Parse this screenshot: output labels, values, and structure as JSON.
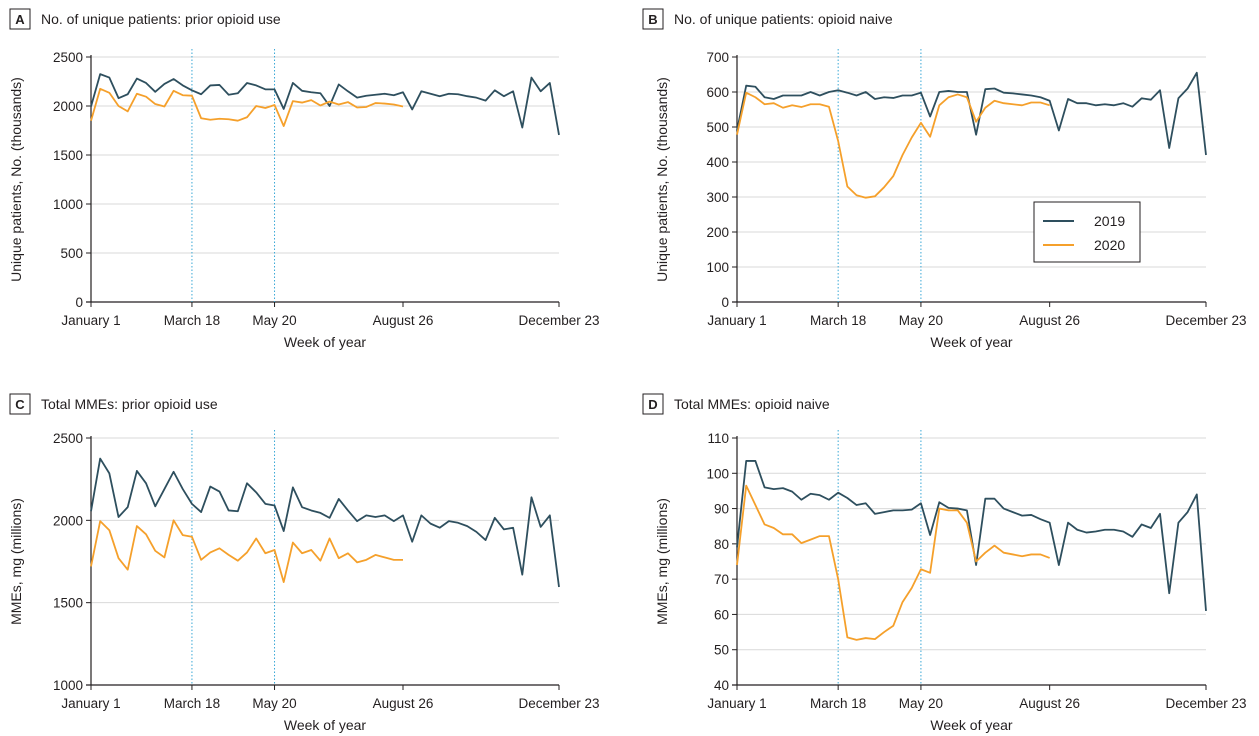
{
  "colors": {
    "series_2019": "#2e4f5e",
    "series_2020": "#f5a02b",
    "axis": "#231f20",
    "grid": "#d9d9d9",
    "marker": "#39a8d6"
  },
  "chart_data": [
    {
      "panel": "A",
      "type": "line",
      "title": "No. of unique patients: prior opioid use",
      "xlabel": "Week of year",
      "ylabel": "Unique patients, No. (thousands)",
      "xlim": [
        1,
        52
      ],
      "ylim": [
        0,
        2500
      ],
      "yticks": [
        0,
        500,
        1000,
        1500,
        2000,
        2500
      ],
      "xticks": [
        {
          "x": 1,
          "label": "January 1"
        },
        {
          "x": 12,
          "label": "March 18"
        },
        {
          "x": 21,
          "label": "May 20"
        },
        {
          "x": 35,
          "label": "August 26"
        },
        {
          "x": 52,
          "label": "December 23"
        }
      ],
      "vlines": [
        12,
        21
      ],
      "grid": true,
      "series": [
        {
          "name": "2019",
          "values": [
            1995,
            2325,
            2290,
            2080,
            2120,
            2280,
            2235,
            2145,
            2225,
            2275,
            2210,
            2160,
            2120,
            2210,
            2215,
            2115,
            2130,
            2235,
            2210,
            2170,
            2170,
            1970,
            2235,
            2155,
            2140,
            2130,
            2000,
            2220,
            2150,
            2085,
            2105,
            2115,
            2125,
            2110,
            2140,
            1965,
            2150,
            2125,
            2100,
            2125,
            2120,
            2100,
            2085,
            2055,
            2160,
            2100,
            2150,
            1780,
            2290,
            2150,
            2235,
            1705
          ]
        },
        {
          "name": "2020",
          "values": [
            1850,
            2175,
            2135,
            2000,
            1945,
            2125,
            2095,
            2020,
            1995,
            2155,
            2110,
            2105,
            1875,
            1860,
            1870,
            1865,
            1850,
            1885,
            2000,
            1980,
            2010,
            1795,
            2050,
            2035,
            2060,
            2005,
            2045,
            2015,
            2040,
            1985,
            1990,
            2030,
            2025,
            2015,
            1995
          ]
        }
      ]
    },
    {
      "panel": "B",
      "type": "line",
      "title": "No. of unique patients: opioid naive",
      "xlabel": "Week of year",
      "ylabel": "Unique patients, No. (thousands)",
      "xlim": [
        1,
        52
      ],
      "ylim": [
        0,
        700
      ],
      "yticks": [
        0,
        100,
        200,
        300,
        400,
        500,
        600,
        700
      ],
      "xticks": [
        {
          "x": 1,
          "label": "January 1"
        },
        {
          "x": 12,
          "label": "March 18"
        },
        {
          "x": 21,
          "label": "May 20"
        },
        {
          "x": 35,
          "label": "August 26"
        },
        {
          "x": 52,
          "label": "December 23"
        }
      ],
      "vlines": [
        12,
        21
      ],
      "grid": true,
      "legend": {
        "position": "right",
        "entries": [
          "2019",
          "2020"
        ]
      },
      "series": [
        {
          "name": "2019",
          "values": [
            490,
            618,
            615,
            585,
            580,
            590,
            590,
            590,
            600,
            590,
            600,
            605,
            598,
            590,
            600,
            580,
            585,
            583,
            590,
            590,
            598,
            530,
            600,
            603,
            600,
            600,
            478,
            608,
            610,
            598,
            596,
            593,
            590,
            585,
            575,
            490,
            580,
            568,
            568,
            562,
            565,
            562,
            568,
            558,
            582,
            578,
            605,
            440,
            582,
            610,
            655,
            420
          ]
        },
        {
          "name": "2020",
          "values": [
            478,
            598,
            585,
            565,
            568,
            555,
            562,
            557,
            565,
            565,
            558,
            460,
            330,
            305,
            298,
            302,
            328,
            360,
            420,
            470,
            512,
            472,
            562,
            585,
            593,
            585,
            515,
            555,
            575,
            568,
            565,
            562,
            570,
            570,
            562
          ]
        }
      ]
    },
    {
      "panel": "C",
      "type": "line",
      "title": "Total MMEs: prior opioid use",
      "xlabel": "Week of year",
      "ylabel": "MMEs, mg (millions)",
      "xlim": [
        1,
        52
      ],
      "ylim": [
        1000,
        2500
      ],
      "yticks": [
        1000,
        1500,
        2000,
        2500
      ],
      "xticks": [
        {
          "x": 1,
          "label": "January 1"
        },
        {
          "x": 12,
          "label": "March 18"
        },
        {
          "x": 21,
          "label": "May 20"
        },
        {
          "x": 35,
          "label": "August 26"
        },
        {
          "x": 52,
          "label": "December 23"
        }
      ],
      "vlines": [
        12,
        21
      ],
      "grid": true,
      "series": [
        {
          "name": "2019",
          "values": [
            2055,
            2375,
            2285,
            2020,
            2080,
            2300,
            2225,
            2085,
            2190,
            2295,
            2190,
            2100,
            2050,
            2205,
            2175,
            2060,
            2055,
            2225,
            2170,
            2100,
            2090,
            1935,
            2200,
            2080,
            2060,
            2045,
            2015,
            2130,
            2060,
            1995,
            2030,
            2020,
            2030,
            1995,
            2030,
            1870,
            2030,
            1980,
            1955,
            1995,
            1985,
            1965,
            1930,
            1880,
            2015,
            1945,
            1955,
            1670,
            2140,
            1960,
            2030,
            1595
          ]
        },
        {
          "name": "2020",
          "values": [
            1720,
            1995,
            1940,
            1770,
            1700,
            1965,
            1915,
            1815,
            1775,
            2000,
            1910,
            1900,
            1760,
            1805,
            1830,
            1790,
            1755,
            1805,
            1890,
            1800,
            1820,
            1625,
            1865,
            1800,
            1820,
            1755,
            1890,
            1770,
            1800,
            1745,
            1760,
            1790,
            1775,
            1760,
            1760
          ]
        }
      ]
    },
    {
      "panel": "D",
      "type": "line",
      "title": "Total MMEs: opioid naive",
      "xlabel": "Week of year",
      "ylabel": "MMEs, mg (millions)",
      "xlim": [
        1,
        52
      ],
      "ylim": [
        40,
        110
      ],
      "yticks": [
        40,
        50,
        60,
        70,
        80,
        90,
        100,
        110
      ],
      "xticks": [
        {
          "x": 1,
          "label": "January 1"
        },
        {
          "x": 12,
          "label": "March 18"
        },
        {
          "x": 21,
          "label": "May 20"
        },
        {
          "x": 35,
          "label": "August 26"
        },
        {
          "x": 52,
          "label": "December 23"
        }
      ],
      "vlines": [
        12,
        21
      ],
      "grid": true,
      "series": [
        {
          "name": "2019",
          "values": [
            79,
            103.5,
            103.5,
            96,
            95.5,
            95.8,
            94.8,
            92.5,
            94.2,
            93.8,
            92.5,
            94.5,
            93,
            91,
            91.5,
            88.5,
            89,
            89.5,
            89.5,
            89.7,
            91.5,
            82.5,
            91.8,
            90.2,
            90,
            89.5,
            74,
            92.8,
            92.8,
            90,
            89,
            88,
            88.2,
            87,
            86,
            74,
            86,
            84,
            83.2,
            83.5,
            84,
            84,
            83.5,
            82,
            85.5,
            84.5,
            88.5,
            66,
            86,
            89,
            94,
            61
          ]
        },
        {
          "name": "2020",
          "values": [
            74,
            96.5,
            91,
            85.5,
            84.5,
            82.7,
            82.7,
            80.2,
            81.2,
            82.2,
            82.2,
            70,
            53.5,
            52.8,
            53.3,
            53,
            55,
            56.8,
            63.5,
            67.5,
            72.8,
            71.8,
            90,
            89.5,
            89.5,
            86,
            75,
            77.5,
            79.5,
            77.5,
            77,
            76.5,
            77,
            77,
            76
          ]
        }
      ]
    }
  ]
}
